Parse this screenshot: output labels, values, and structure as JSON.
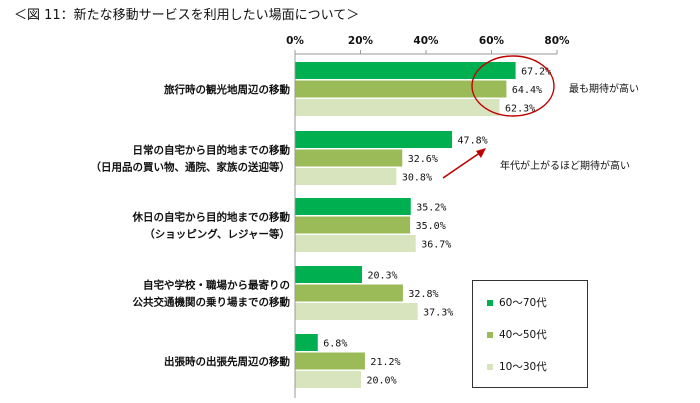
{
  "title": "＜図 11：新たな移動サービスを利用したい場面について＞",
  "chart_data": {
    "type": "bar",
    "orientation": "horizontal",
    "categories": [
      [
        "旅行時の観光地周辺の移動"
      ],
      [
        "日常の自宅から目的地までの移動",
        "（日用品の買い物、通院、家族の送迎等）"
      ],
      [
        "休日の自宅から目的地までの移動",
        "（ショッピング、レジャー等）"
      ],
      [
        "自宅や学校・職場から最寄りの",
        "公共交通機関の乗り場までの移動"
      ],
      [
        "出張時の出張先周辺の移動"
      ]
    ],
    "series": [
      {
        "name": "60～70代",
        "color": "#00b050",
        "values": [
          67.2,
          47.8,
          35.2,
          20.3,
          6.8
        ]
      },
      {
        "name": "40～50代",
        "color": "#9bbb59",
        "values": [
          64.4,
          32.6,
          35.0,
          32.8,
          21.2
        ]
      },
      {
        "name": "10～30代",
        "color": "#d7e4bd",
        "values": [
          62.3,
          30.8,
          36.7,
          37.3,
          20.0
        ]
      }
    ],
    "xlim": [
      0,
      80
    ],
    "ticks": [
      "0%",
      "20%",
      "40%",
      "60%",
      "80%"
    ],
    "value_suffix": "%",
    "annotations": [
      "最も期待が高い",
      "年代が上がるほど期待が高い"
    ],
    "legend_position": "bottom-right",
    "grid": false
  }
}
